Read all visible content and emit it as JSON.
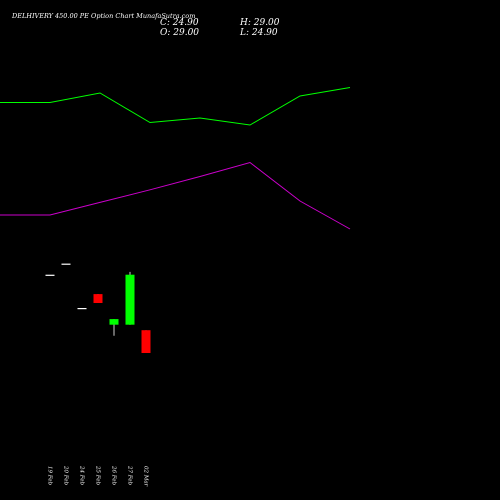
{
  "header": {
    "title": "DELHIVERY 450.00  PE Option  Chart MunafaSutra.com",
    "close_text": "C: 24.90",
    "high_text": "H: 29.00",
    "open_text": "O: 29.00",
    "low_text": "L: 24.90"
  },
  "colors": {
    "background": "#000000",
    "up": "#00ff00",
    "down": "#ff0000",
    "flat": "#ffffff",
    "green_line": "#00ff00",
    "magenta_line": "#cc00cc",
    "text": "#ffffff"
  },
  "chart_data": [
    {
      "type": "line",
      "series": [
        {
          "values": [
            0.45,
            0.45,
            0.64,
            0.05,
            0.14,
            0.0,
            0.58,
            0.75
          ],
          "color": "#00ff00"
        },
        {
          "values": [
            0.0,
            0.0,
            0.18,
            0.36,
            0.55,
            0.75,
            0.2,
            -0.2
          ],
          "color": "#cc00cc"
        }
      ],
      "grid": false
    },
    {
      "type": "candlestick",
      "categories": [
        "19 Feb",
        "20 Feb",
        "24 Feb",
        "25 Feb",
        "26 Feb",
        "27 Feb",
        "02 Mar"
      ],
      "candles": [
        {
          "open": 39.0,
          "high": 39.0,
          "low": 39.0,
          "close": 39.0
        },
        {
          "open": 41.0,
          "high": 41.0,
          "low": 41.0,
          "close": 41.0
        },
        {
          "open": 33.0,
          "high": 33.0,
          "low": 33.0,
          "close": 33.0
        },
        {
          "open": 35.5,
          "high": 35.5,
          "low": 33.9,
          "close": 33.9
        },
        {
          "open": 30.0,
          "high": 31.0,
          "low": 28.0,
          "close": 31.0
        },
        {
          "open": 30.0,
          "high": 39.5,
          "low": 30.0,
          "close": 39.0
        },
        {
          "open": 29.0,
          "high": 29.0,
          "low": 24.9,
          "close": 24.9
        }
      ],
      "grid": false
    }
  ]
}
